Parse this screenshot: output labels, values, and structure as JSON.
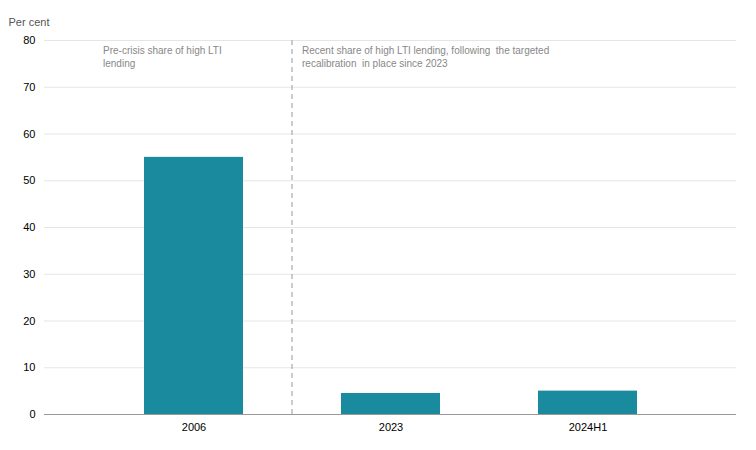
{
  "chart_data": {
    "type": "bar",
    "categories": [
      "2006",
      "2023",
      "2024H1"
    ],
    "values": [
      55,
      4.5,
      5
    ],
    "color": "#1a8a9e",
    "ylabel": "Per cent",
    "ylim": [
      0,
      80
    ],
    "yticks": [
      0,
      10,
      20,
      30,
      40,
      50,
      60,
      70,
      80
    ],
    "grid": true,
    "annotations": [
      "Pre-crisis share of high LTI\nlending",
      "Recent share of high LTI lending, following  the targeted\nrecalibration  in place since 2023"
    ]
  }
}
